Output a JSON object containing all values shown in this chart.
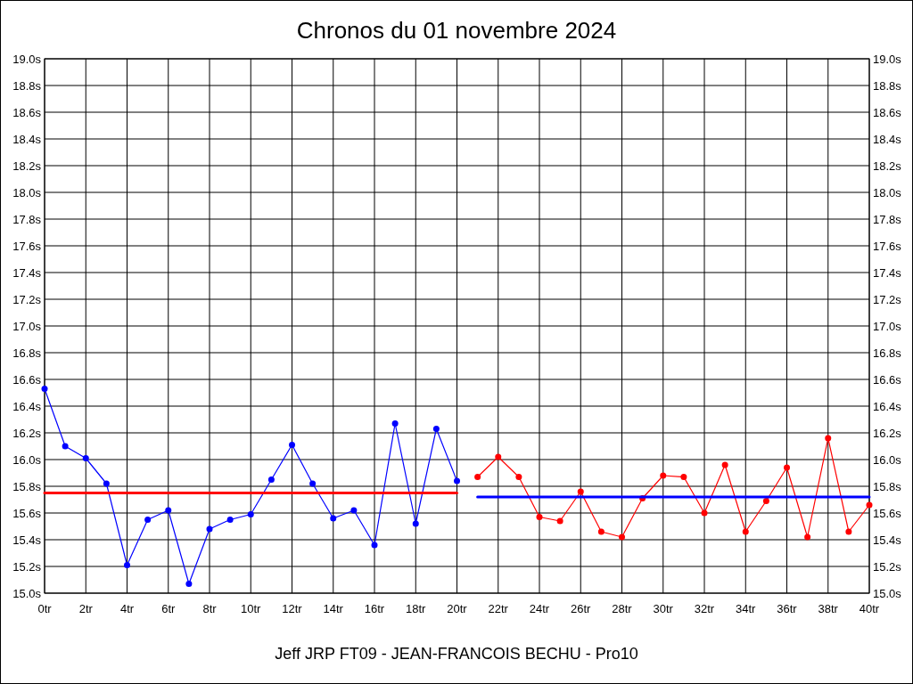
{
  "chart_data": {
    "type": "line",
    "title": "Chronos du 01 novembre 2024",
    "xlabel": "Jeff JRP FT09 - JEAN-FRANCOIS BECHU - Pro10",
    "xlim": [
      0,
      40
    ],
    "xticks": [
      {
        "value": 0,
        "label": "0tr"
      },
      {
        "value": 2,
        "label": "2tr"
      },
      {
        "value": 4,
        "label": "4tr"
      },
      {
        "value": 6,
        "label": "6tr"
      },
      {
        "value": 8,
        "label": "8tr"
      },
      {
        "value": 10,
        "label": "10tr"
      },
      {
        "value": 12,
        "label": "12tr"
      },
      {
        "value": 14,
        "label": "14tr"
      },
      {
        "value": 16,
        "label": "16tr"
      },
      {
        "value": 18,
        "label": "18tr"
      },
      {
        "value": 20,
        "label": "20tr"
      },
      {
        "value": 22,
        "label": "22tr"
      },
      {
        "value": 24,
        "label": "24tr"
      },
      {
        "value": 26,
        "label": "26tr"
      },
      {
        "value": 28,
        "label": "28tr"
      },
      {
        "value": 30,
        "label": "30tr"
      },
      {
        "value": 32,
        "label": "32tr"
      },
      {
        "value": 34,
        "label": "34tr"
      },
      {
        "value": 36,
        "label": "36tr"
      },
      {
        "value": 38,
        "label": "38tr"
      },
      {
        "value": 40,
        "label": "40tr"
      }
    ],
    "ylim": [
      15.0,
      19.0
    ],
    "yticks": [
      {
        "value": 15.0,
        "label": "15.0s"
      },
      {
        "value": 15.2,
        "label": "15.2s"
      },
      {
        "value": 15.4,
        "label": "15.4s"
      },
      {
        "value": 15.6,
        "label": "15.6s"
      },
      {
        "value": 15.8,
        "label": "15.8s"
      },
      {
        "value": 16.0,
        "label": "16.0s"
      },
      {
        "value": 16.2,
        "label": "16.2s"
      },
      {
        "value": 16.4,
        "label": "16.4s"
      },
      {
        "value": 16.6,
        "label": "16.6s"
      },
      {
        "value": 16.8,
        "label": "16.8s"
      },
      {
        "value": 17.0,
        "label": "17.0s"
      },
      {
        "value": 17.2,
        "label": "17.2s"
      },
      {
        "value": 17.4,
        "label": "17.4s"
      },
      {
        "value": 17.6,
        "label": "17.6s"
      },
      {
        "value": 17.8,
        "label": "17.8s"
      },
      {
        "value": 18.0,
        "label": "18.0s"
      },
      {
        "value": 18.2,
        "label": "18.2s"
      },
      {
        "value": 18.4,
        "label": "18.4s"
      },
      {
        "value": 18.6,
        "label": "18.6s"
      },
      {
        "value": 18.8,
        "label": "18.8s"
      },
      {
        "value": 19.0,
        "label": "19.0s"
      }
    ],
    "y2lim": [
      15.0,
      19.0
    ],
    "y2ticks": [
      {
        "value": 15.0,
        "label": "15.0s"
      },
      {
        "value": 15.2,
        "label": "15.2s"
      },
      {
        "value": 15.4,
        "label": "15.4s"
      },
      {
        "value": 15.6,
        "label": "15.6s"
      },
      {
        "value": 15.8,
        "label": "15.8s"
      },
      {
        "value": 16.0,
        "label": "16.0s"
      },
      {
        "value": 16.2,
        "label": "16.2s"
      },
      {
        "value": 16.4,
        "label": "16.4s"
      },
      {
        "value": 16.6,
        "label": "16.6s"
      },
      {
        "value": 16.8,
        "label": "16.8s"
      },
      {
        "value": 17.0,
        "label": "17.0s"
      },
      {
        "value": 17.2,
        "label": "17.2s"
      },
      {
        "value": 17.4,
        "label": "17.4s"
      },
      {
        "value": 17.6,
        "label": "17.6s"
      },
      {
        "value": 17.8,
        "label": "17.8s"
      },
      {
        "value": 18.0,
        "label": "18.0s"
      },
      {
        "value": 18.2,
        "label": "18.2s"
      },
      {
        "value": 18.4,
        "label": "18.4s"
      },
      {
        "value": 18.6,
        "label": "18.6s"
      },
      {
        "value": 18.8,
        "label": "18.8s"
      },
      {
        "value": 19.0,
        "label": "19.0s"
      }
    ],
    "grid": true,
    "series": [
      {
        "color": "#0000ff",
        "marker": "circle",
        "x": [
          0,
          1,
          2,
          3,
          4,
          5,
          6,
          7,
          8,
          9,
          10,
          11,
          12,
          13,
          14,
          15,
          16,
          17,
          18,
          19,
          20
        ],
        "values": [
          16.53,
          16.1,
          16.01,
          15.82,
          15.21,
          15.55,
          15.62,
          15.07,
          15.48,
          15.55,
          15.59,
          15.85,
          16.11,
          15.82,
          15.56,
          15.62,
          15.36,
          16.27,
          15.52,
          16.23,
          15.84
        ]
      },
      {
        "color": "#ff0000",
        "marker": "circle",
        "x": [
          21,
          22,
          23,
          24,
          25,
          26,
          27,
          28,
          29,
          30,
          31,
          32,
          33,
          34,
          35,
          36,
          37,
          38,
          39,
          40
        ],
        "values": [
          15.87,
          16.02,
          15.87,
          15.57,
          15.54,
          15.76,
          15.46,
          15.42,
          15.71,
          15.88,
          15.87,
          15.6,
          15.96,
          15.46,
          15.69,
          15.94,
          15.42,
          16.16,
          15.46,
          15.66
        ]
      },
      {
        "color": "#ff0000",
        "marker": "none",
        "x": [
          0,
          20
        ],
        "values": [
          15.75,
          15.75
        ]
      },
      {
        "color": "#0000ff",
        "marker": "none",
        "x": [
          21,
          40
        ],
        "values": [
          15.72,
          15.72
        ]
      }
    ]
  }
}
